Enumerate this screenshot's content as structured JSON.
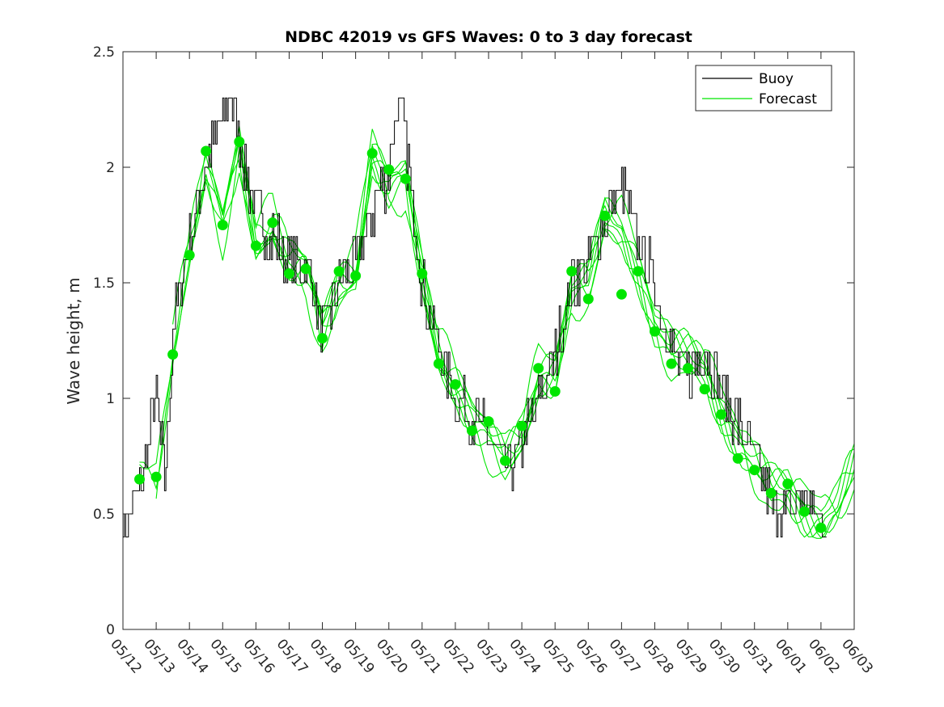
{
  "chart_data": {
    "type": "line",
    "title": "NDBC 42019 vs GFS Waves: 0 to 3 day forecast",
    "xlabel": "",
    "ylabel": "Wave height, m",
    "xlim": [
      "05/12",
      "06/03"
    ],
    "ylim": [
      0,
      2.5
    ],
    "yticks": [
      "0",
      "0.5",
      "1",
      "1.5",
      "2",
      "2.5"
    ],
    "xticks": [
      "05/12",
      "05/13",
      "05/14",
      "05/15",
      "05/16",
      "05/17",
      "05/18",
      "05/19",
      "05/20",
      "05/21",
      "05/22",
      "05/23",
      "05/24",
      "05/25",
      "05/26",
      "05/27",
      "05/28",
      "05/29",
      "05/30",
      "05/31",
      "06/01",
      "06/02",
      "06/03"
    ],
    "legend": {
      "placement": "top-right",
      "entries": [
        {
          "label": "Buoy",
          "color": "#000000"
        },
        {
          "label": "Forecast",
          "color": "#00e600"
        }
      ]
    },
    "buoy": {
      "name": "Buoy",
      "color": "#000000",
      "x": [
        "05/12 00:00",
        "05/12 12:00",
        "05/13 00:00",
        "05/13 06:00",
        "05/13 12:00",
        "05/14 00:00",
        "05/14 12:00",
        "05/15 00:00",
        "05/15 06:00",
        "05/15 12:00",
        "05/16 00:00",
        "05/16 12:00",
        "05/17 00:00",
        "05/17 12:00",
        "05/18 00:00",
        "05/18 12:00",
        "05/19 00:00",
        "05/19 12:00",
        "05/20 00:00",
        "05/20 06:00",
        "05/20 12:00",
        "05/21 00:00",
        "05/21 12:00",
        "05/22 00:00",
        "05/22 12:00",
        "05/23 00:00",
        "05/23 12:00",
        "05/24 00:00",
        "05/24 12:00",
        "05/25 00:00",
        "05/25 12:00",
        "05/26 00:00",
        "05/26 12:00",
        "05/27 00:00",
        "05/27 12:00",
        "05/28 00:00",
        "05/28 12:00",
        "05/29 00:00",
        "05/29 12:00",
        "05/30 00:00",
        "05/30 12:00",
        "05/31 00:00",
        "05/31 12:00",
        "06/01 00:00",
        "06/01 12:00",
        "06/02 00:00",
        "06/02 12:00"
      ],
      "values": [
        0.4,
        0.6,
        1.0,
        0.65,
        1.3,
        1.7,
        2.0,
        2.2,
        2.3,
        2.1,
        1.8,
        1.7,
        1.6,
        1.6,
        1.3,
        1.5,
        1.6,
        1.8,
        2.0,
        2.3,
        2.1,
        1.5,
        1.2,
        1.0,
        0.95,
        0.8,
        0.7,
        0.8,
        1.0,
        1.2,
        1.5,
        1.6,
        1.8,
        1.9,
        1.7,
        1.5,
        1.2,
        1.1,
        1.2,
        1.05,
        0.9,
        0.75,
        0.55,
        0.5,
        0.6,
        0.45,
        0.5
      ]
    },
    "forecast": {
      "name": "Forecast",
      "color": "#00e600",
      "x": [
        "05/12 12:00",
        "05/13 00:00",
        "05/13 12:00",
        "05/14 00:00",
        "05/14 12:00",
        "05/15 00:00",
        "05/15 12:00",
        "05/16 00:00",
        "05/16 12:00",
        "05/17 00:00",
        "05/17 12:00",
        "05/18 00:00",
        "05/18 12:00",
        "05/19 00:00",
        "05/19 12:00",
        "05/20 00:00",
        "05/20 12:00",
        "05/21 00:00",
        "05/21 12:00",
        "05/22 00:00",
        "05/22 12:00",
        "05/23 00:00",
        "05/23 12:00",
        "05/24 00:00",
        "05/24 12:00",
        "05/25 00:00",
        "05/25 12:00",
        "05/26 00:00",
        "05/26 12:00",
        "05/27 00:00",
        "05/27 12:00",
        "05/28 00:00",
        "05/28 12:00",
        "05/29 00:00",
        "05/29 12:00",
        "05/30 00:00",
        "05/30 12:00",
        "05/31 00:00",
        "05/31 12:00",
        "06/01 00:00",
        "06/01 12:00",
        "06/02 00:00",
        "06/02 12:00",
        "06/03 00:00"
      ],
      "values": [
        0.68,
        0.66,
        1.2,
        1.62,
        2.0,
        1.75,
        2.1,
        1.68,
        1.75,
        1.58,
        1.55,
        1.3,
        1.5,
        1.55,
        2.05,
        1.9,
        1.95,
        1.55,
        1.2,
        1.05,
        0.9,
        0.82,
        0.75,
        0.85,
        1.1,
        1.1,
        1.45,
        1.5,
        1.8,
        1.75,
        1.55,
        1.3,
        1.2,
        1.2,
        1.15,
        0.95,
        0.8,
        0.7,
        0.62,
        0.62,
        0.52,
        0.46,
        0.52,
        0.7
      ]
    },
    "forecast_markers": {
      "name": "Forecast",
      "color": "#00e600",
      "x": [
        "05/12 12:00",
        "05/13 00:00",
        "05/13 12:00",
        "05/14 00:00",
        "05/14 12:00",
        "05/15 00:00",
        "05/15 12:00",
        "05/16 00:00",
        "05/16 12:00",
        "05/17 00:00",
        "05/17 12:00",
        "05/18 00:00",
        "05/18 12:00",
        "05/19 00:00",
        "05/19 12:00",
        "05/20 00:00",
        "05/20 12:00",
        "05/21 00:00",
        "05/21 12:00",
        "05/22 00:00",
        "05/22 12:00",
        "05/23 00:00",
        "05/23 12:00",
        "05/24 00:00",
        "05/24 12:00",
        "05/25 00:00",
        "05/25 12:00",
        "05/26 00:00",
        "05/26 12:00",
        "05/27 00:00",
        "05/27 12:00",
        "05/28 00:00",
        "05/28 12:00",
        "05/29 00:00",
        "05/29 12:00",
        "05/30 00:00",
        "05/30 12:00",
        "05/31 00:00",
        "05/31 12:00",
        "06/01 00:00",
        "06/01 12:00",
        "06/02 00:00"
      ],
      "values": [
        0.65,
        0.66,
        1.19,
        1.62,
        2.07,
        1.75,
        2.11,
        1.66,
        1.76,
        1.54,
        1.56,
        1.26,
        1.55,
        1.53,
        2.06,
        1.99,
        1.95,
        1.54,
        1.15,
        1.06,
        0.86,
        0.9,
        0.73,
        0.88,
        1.13,
        1.03,
        1.55,
        1.43,
        1.79,
        1.45,
        1.55,
        1.29,
        1.15,
        1.13,
        1.04,
        0.93,
        0.74,
        0.69,
        0.59,
        0.63,
        0.51,
        0.44
      ]
    }
  }
}
